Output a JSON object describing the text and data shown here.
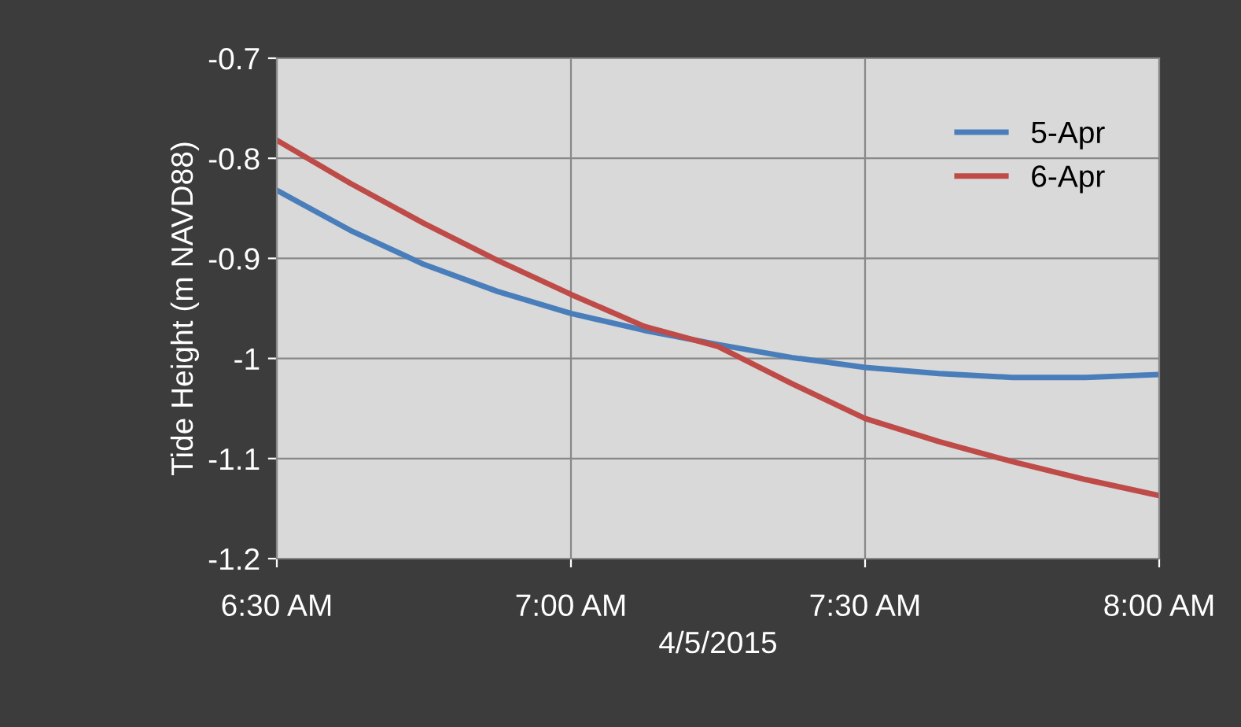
{
  "chart_data": {
    "type": "line",
    "xlabel": "4/5/2015",
    "ylabel": "Tide Height (m NAVD88)",
    "x": [
      6.5,
      6.625,
      6.75,
      6.875,
      7.0,
      7.125,
      7.25,
      7.375,
      7.5,
      7.625,
      7.75,
      7.875,
      8.0
    ],
    "series": [
      {
        "name": "5-Apr",
        "color": "#4a7ebb",
        "values": [
          -0.832,
          -0.872,
          -0.906,
          -0.933,
          -0.955,
          -0.972,
          -0.986,
          -0.999,
          -1.009,
          -1.015,
          -1.019,
          -1.019,
          -1.016
        ]
      },
      {
        "name": "6-Apr",
        "color": "#be4b48",
        "values": [
          -0.782,
          -0.825,
          -0.865,
          -0.902,
          -0.936,
          -0.968,
          -0.988,
          -1.025,
          -1.06,
          -1.083,
          -1.103,
          -1.121,
          -1.137
        ]
      }
    ],
    "xlim": [
      6.5,
      8.0
    ],
    "xticks": [
      {
        "value": 6.5,
        "label": "6:30 AM"
      },
      {
        "value": 7.0,
        "label": "7:00 AM"
      },
      {
        "value": 7.5,
        "label": "7:30 AM"
      },
      {
        "value": 8.0,
        "label": "8:00 AM"
      }
    ],
    "ylim": [
      -1.2,
      -0.7
    ],
    "yticks": [
      -1.2,
      -1.1,
      -1,
      -0.9,
      -0.8,
      -0.7
    ],
    "grid": true,
    "legend": "top right",
    "marker": "none",
    "line_style": "solid"
  }
}
